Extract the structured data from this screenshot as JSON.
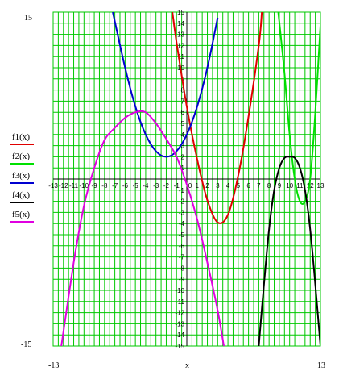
{
  "chart_data": {
    "type": "line",
    "x_range": [
      -13,
      13
    ],
    "y_range": [
      -15,
      15
    ],
    "xlabel": "x",
    "x_limit_labels": [
      "-13",
      "13"
    ],
    "y_limit_labels": [
      "15",
      "-15"
    ],
    "x_ticks": [
      "-13",
      "-12",
      "-11",
      "-10",
      "-9",
      "-8",
      "-7",
      "-6",
      "-5",
      "-4",
      "-3",
      "-2",
      "-1",
      "0",
      "1",
      "2",
      "3",
      "4",
      "5",
      "6",
      "7",
      "8",
      "9",
      "10",
      "11",
      "12",
      "13"
    ],
    "y_ticks": [
      "15",
      "14",
      "13",
      "12",
      "11",
      "10",
      "9",
      "8",
      "7",
      "6",
      "5",
      "4",
      "3",
      "2",
      "1",
      "-1",
      "-2",
      "-3",
      "-4",
      "-5",
      "-6",
      "-7",
      "-8",
      "-9",
      "-10",
      "-11",
      "-12",
      "-13",
      "-14",
      "-15"
    ],
    "grid": true,
    "legend_position": "left",
    "series": [
      {
        "name": "f1(x)",
        "color": "#e00000",
        "points": [
          [
            -1.4,
            15
          ],
          [
            -1,
            12.3
          ],
          [
            0,
            6.5
          ],
          [
            1,
            1.8
          ],
          [
            2,
            -1.9
          ],
          [
            3,
            -3.9
          ],
          [
            4,
            -3.2
          ],
          [
            5,
            0.3
          ],
          [
            6,
            5.6
          ],
          [
            7,
            12.0
          ],
          [
            7.3,
            15
          ]
        ]
      },
      {
        "name": "f2(x)",
        "color": "#00e000",
        "points": [
          [
            8.9,
            15
          ],
          [
            9.5,
            9.5
          ],
          [
            10,
            4.0
          ],
          [
            10.5,
            0
          ],
          [
            11,
            -2.0
          ],
          [
            11.5,
            -2.0
          ],
          [
            12,
            0
          ],
          [
            12.5,
            6.0
          ],
          [
            13,
            13.8
          ]
        ]
      },
      {
        "name": "f3(x)",
        "color": "#0000d0",
        "points": [
          [
            -7.2,
            15
          ],
          [
            -6,
            10.0
          ],
          [
            -5,
            6.5
          ],
          [
            -4,
            4.0
          ],
          [
            -3,
            2.5
          ],
          [
            -2,
            2.0
          ],
          [
            -1,
            2.5
          ],
          [
            0,
            4.0
          ],
          [
            1,
            6.5
          ],
          [
            2,
            10.0
          ],
          [
            3,
            14.5
          ]
        ]
      },
      {
        "name": "f4(x)",
        "color": "#000000",
        "points": [
          [
            7,
            -15
          ],
          [
            7.5,
            -9.5
          ],
          [
            8,
            -4.5
          ],
          [
            8.5,
            -1.0
          ],
          [
            9,
            1.0
          ],
          [
            9.5,
            1.9
          ],
          [
            10,
            2.0
          ],
          [
            10.5,
            1.9
          ],
          [
            11,
            1.0
          ],
          [
            11.5,
            -1.0
          ],
          [
            12,
            -4.5
          ],
          [
            12.5,
            -9.5
          ],
          [
            13,
            -15
          ]
        ]
      },
      {
        "name": "f5(x)",
        "color": "#e000e0",
        "points": [
          [
            -12.2,
            -15
          ],
          [
            -11,
            -7.5
          ],
          [
            -10,
            -2.4
          ],
          [
            -9,
            1.0
          ],
          [
            -8,
            3.5
          ],
          [
            -7,
            4.6
          ],
          [
            -6,
            5.5
          ],
          [
            -5,
            6.0
          ],
          [
            -4,
            6.0
          ],
          [
            -3,
            5.0
          ],
          [
            -2,
            3.6
          ],
          [
            -1,
            2.0
          ],
          [
            0,
            -0.5
          ],
          [
            1,
            -3.6
          ],
          [
            2,
            -7.5
          ],
          [
            3,
            -11.8
          ],
          [
            3.6,
            -15
          ]
        ]
      }
    ]
  }
}
